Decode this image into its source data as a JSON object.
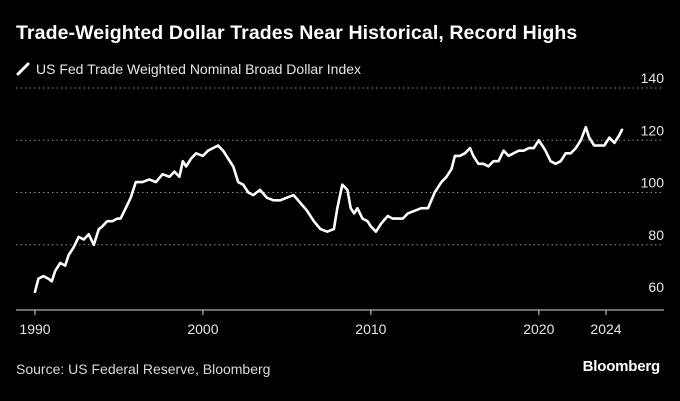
{
  "title": "Trade-Weighted Dollar Trades Near Historical, Record Highs",
  "legend_label": "US Fed Trade Weighted Nominal Broad Dollar Index",
  "source": "Source: US Federal Reserve, Bloomberg",
  "brand": "Bloomberg",
  "colors": {
    "background": "#000000",
    "line": "#ffffff",
    "grid": "#8c8c8c",
    "text": "#ffffff"
  },
  "chart_data": {
    "type": "line",
    "title": "Trade-Weighted Dollar Trades Near Historical, Record Highs",
    "xlabel": "",
    "ylabel": "",
    "xlim": [
      1990,
      2025.5
    ],
    "ylim": [
      60,
      140
    ],
    "x_ticks": [
      1990,
      2000,
      2010,
      2020,
      2024
    ],
    "y_ticks": [
      60,
      80,
      100,
      120,
      140
    ],
    "y_axis_side": "right",
    "grid": "horizontal dotted",
    "series": [
      {
        "name": "US Fed Trade Weighted Nominal Broad Dollar Index",
        "x": [
          1990.0,
          1990.2,
          1990.5,
          1990.8,
          1991.0,
          1991.2,
          1991.5,
          1991.8,
          1992.0,
          1992.3,
          1992.6,
          1992.9,
          1993.2,
          1993.5,
          1993.8,
          1994.0,
          1994.3,
          1994.6,
          1994.9,
          1995.1,
          1995.4,
          1995.7,
          1996.0,
          1996.4,
          1996.8,
          1997.2,
          1997.6,
          1998.0,
          1998.3,
          1998.6,
          1998.8,
          1999.0,
          1999.3,
          1999.6,
          2000.0,
          2000.3,
          2000.6,
          2000.9,
          2001.2,
          2001.5,
          2001.8,
          2002.1,
          2002.4,
          2002.7,
          2003.0,
          2003.4,
          2003.8,
          2004.2,
          2004.6,
          2005.0,
          2005.4,
          2005.8,
          2006.2,
          2006.6,
          2007.0,
          2007.4,
          2007.8,
          2008.0,
          2008.3,
          2008.6,
          2008.8,
          2009.0,
          2009.2,
          2009.5,
          2009.8,
          2010.0,
          2010.3,
          2010.6,
          2011.0,
          2011.3,
          2011.6,
          2011.9,
          2012.2,
          2012.6,
          2013.0,
          2013.4,
          2013.8,
          2014.2,
          2014.5,
          2014.8,
          2015.0,
          2015.3,
          2015.6,
          2015.9,
          2016.1,
          2016.4,
          2016.7,
          2017.0,
          2017.3,
          2017.6,
          2017.9,
          2018.2,
          2018.5,
          2018.8,
          2019.1,
          2019.4,
          2019.7,
          2020.0,
          2020.2,
          2020.4,
          2020.7,
          2021.0,
          2021.3,
          2021.6,
          2021.9,
          2022.2,
          2022.5,
          2022.8,
          2023.0,
          2023.3,
          2023.6,
          2023.9,
          2024.2,
          2024.5,
          2024.8,
          2024.95
        ],
        "values": [
          62,
          67,
          68,
          67,
          66,
          70,
          73,
          72,
          76,
          79,
          83,
          82,
          84,
          80,
          86,
          87,
          89,
          89,
          90,
          90,
          94,
          98,
          104,
          104,
          105,
          104,
          107,
          106,
          108,
          106,
          112,
          110,
          113,
          115,
          114,
          116,
          117,
          118,
          116,
          113,
          110,
          104,
          103,
          100,
          99,
          101,
          98,
          97,
          97,
          98,
          99,
          96,
          93,
          89,
          86,
          85,
          86,
          94,
          103,
          101,
          94,
          92,
          94,
          90,
          89,
          87,
          85,
          88,
          91,
          90,
          90,
          90,
          92,
          93,
          94,
          94,
          100,
          104,
          106,
          109,
          114,
          114,
          115,
          117,
          114,
          111,
          111,
          110,
          112,
          112,
          116,
          114,
          115,
          116,
          116,
          117,
          117,
          120,
          118,
          116,
          112,
          111,
          112,
          115,
          115,
          117,
          120,
          125,
          121,
          118,
          118,
          118,
          121,
          119,
          122,
          124
        ]
      }
    ]
  }
}
